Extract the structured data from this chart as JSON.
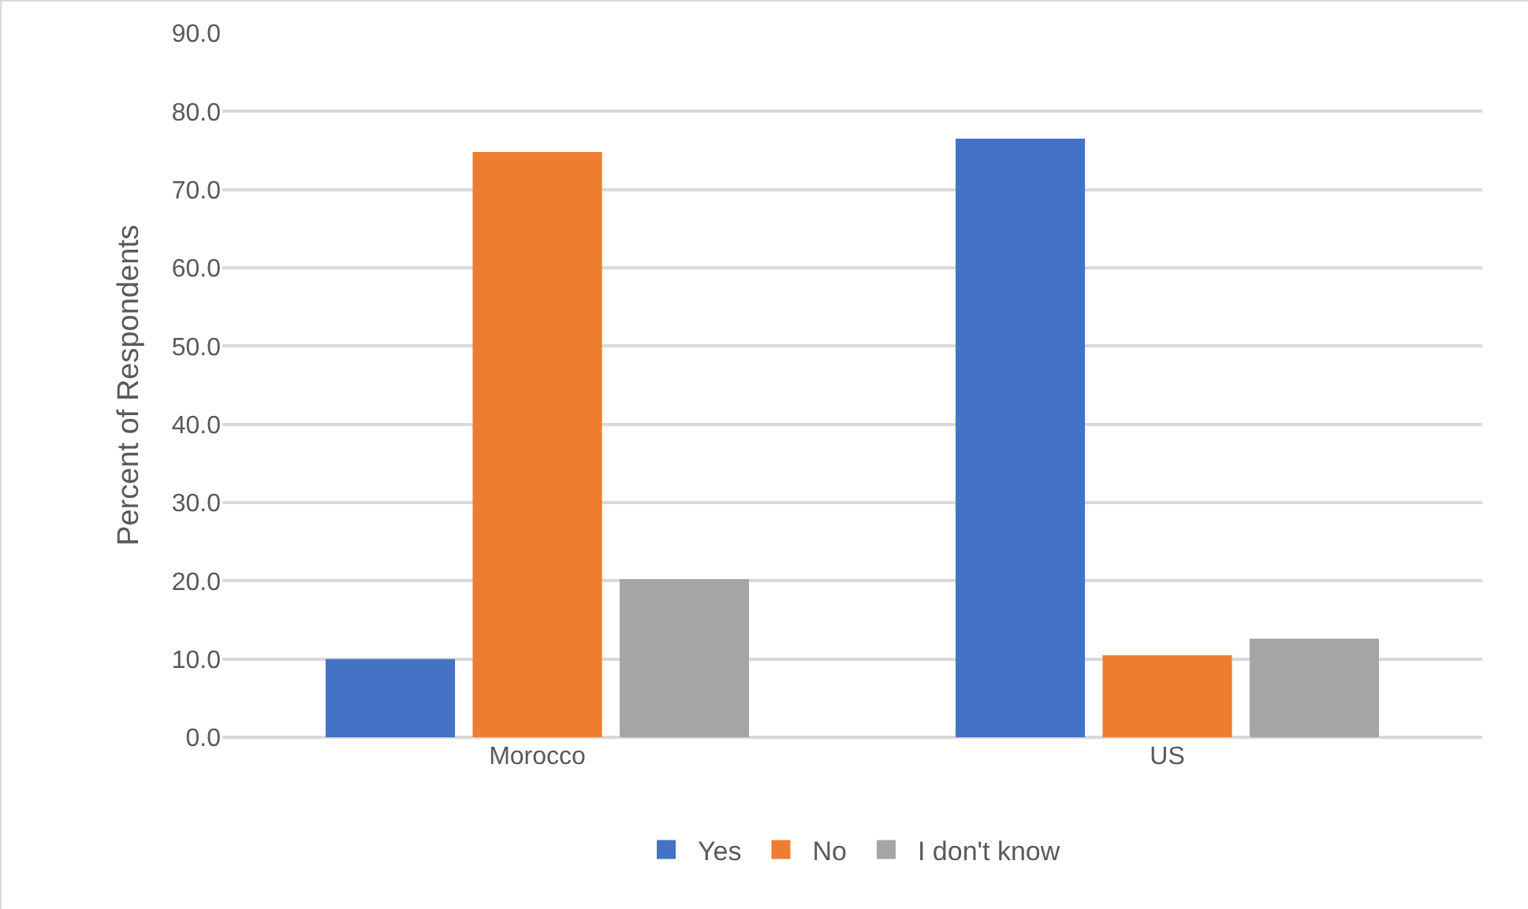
{
  "chart_data": {
    "type": "bar",
    "ylabel": "Percent of Respondents",
    "categories": [
      "Morocco",
      "US"
    ],
    "series": [
      {
        "name": "Yes",
        "color": "#4472c4",
        "values": [
          10.0,
          76.5
        ]
      },
      {
        "name": "No",
        "color": "#ed7d31",
        "values": [
          74.8,
          10.5
        ]
      },
      {
        "name": "I don't know",
        "color": "#a5a5a5",
        "values": [
          20.2,
          12.6
        ]
      }
    ],
    "ylim": [
      0,
      90
    ],
    "yticks": [
      {
        "value": 0,
        "label": "0.0"
      },
      {
        "value": 10,
        "label": "10.0"
      },
      {
        "value": 20,
        "label": "20.0"
      },
      {
        "value": 30,
        "label": "30.0"
      },
      {
        "value": 40,
        "label": "40.0"
      },
      {
        "value": 50,
        "label": "50.0"
      },
      {
        "value": 60,
        "label": "60.0"
      },
      {
        "value": 70,
        "label": "70.0"
      },
      {
        "value": 80,
        "label": "80.0"
      },
      {
        "value": 90,
        "label": "90.0"
      }
    ],
    "grid": "y",
    "legend": "bottom"
  }
}
